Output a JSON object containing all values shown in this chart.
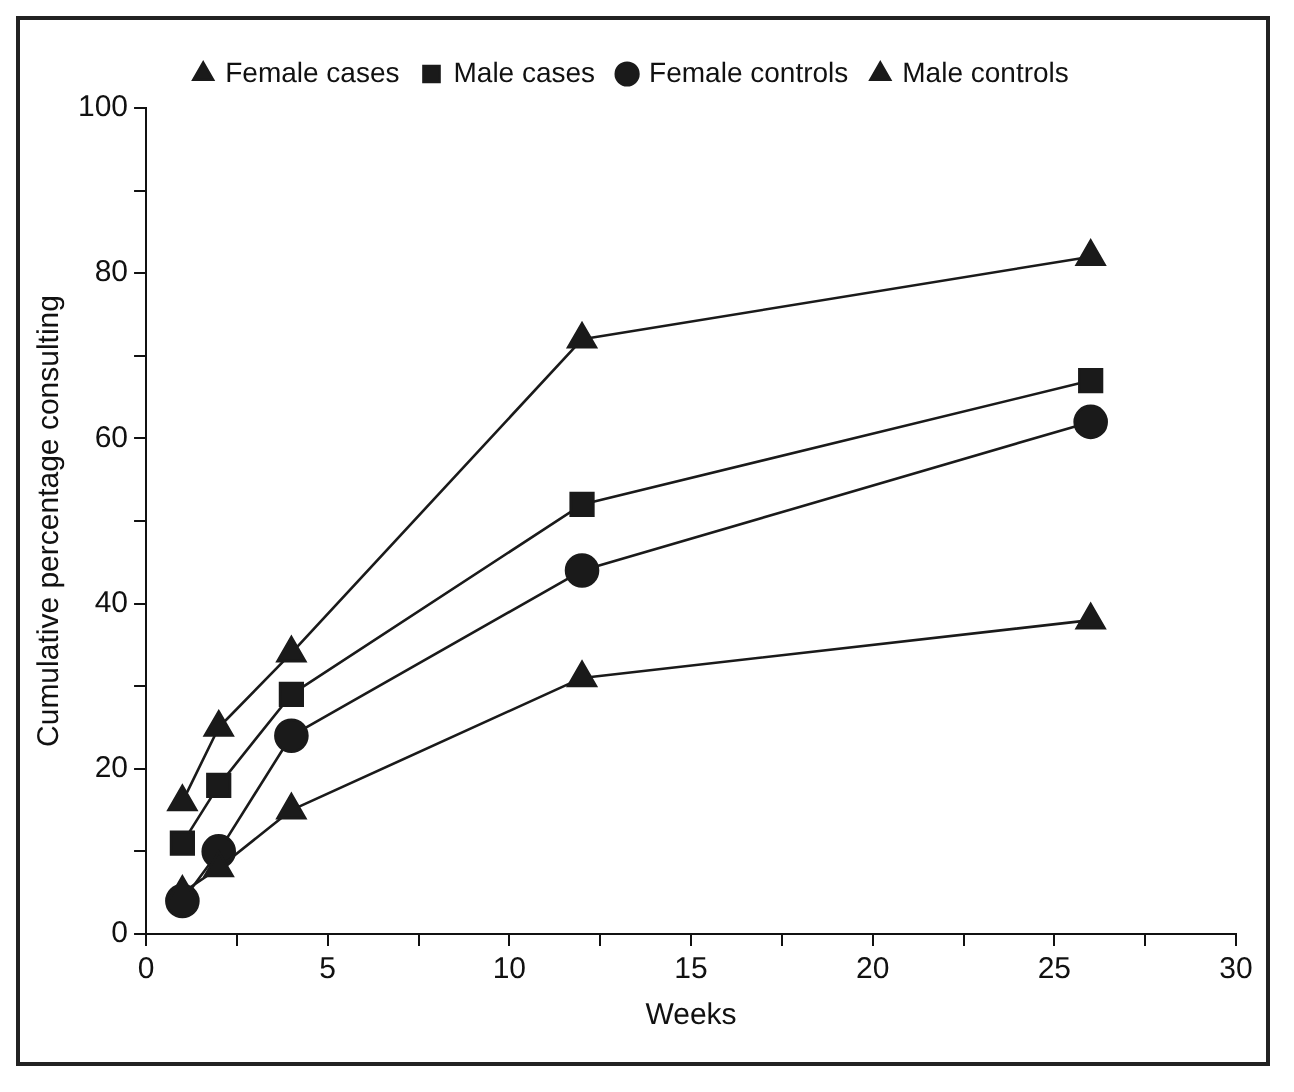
{
  "chart_data": {
    "type": "line",
    "xlabel": "Weeks",
    "ylabel": "Cumulative percentage consulting",
    "legend": "top",
    "grid": false,
    "line_style": "solid",
    "x": [
      1,
      2,
      4,
      12,
      26
    ],
    "series": [
      {
        "name": "Female cases",
        "color": "#1a1a1a",
        "marker": "triangle",
        "values": [
          16,
          25,
          34,
          72,
          82
        ]
      },
      {
        "name": "Male cases",
        "color": "#1a1a1a",
        "marker": "square",
        "values": [
          11,
          18,
          29,
          52,
          67
        ]
      },
      {
        "name": "Female controls",
        "color": "#1a1a1a",
        "marker": "circle",
        "values": [
          4,
          10,
          24,
          44,
          62
        ]
      },
      {
        "name": "Male controls",
        "color": "#1a1a1a",
        "marker": "triangle",
        "values": [
          5,
          8,
          15,
          31,
          38
        ]
      }
    ],
    "xlim": [
      0,
      30
    ],
    "xticks": [
      0,
      {
        "value": 2.5,
        "label": null
      },
      5,
      {
        "value": 7.5,
        "label": null
      },
      10,
      {
        "value": 12.5,
        "label": null
      },
      15,
      {
        "value": 17.5,
        "label": null
      },
      20,
      {
        "value": 22.5,
        "label": null
      },
      25,
      {
        "value": 27.5,
        "label": null
      },
      30
    ],
    "ylim": [
      0,
      100
    ],
    "yticks": [
      0,
      {
        "value": 10,
        "label": null
      },
      20,
      {
        "value": 30,
        "label": null
      },
      40,
      {
        "value": 50,
        "label": null
      },
      60,
      {
        "value": 70,
        "label": null
      },
      80,
      {
        "value": 90,
        "label": null
      },
      100
    ]
  }
}
